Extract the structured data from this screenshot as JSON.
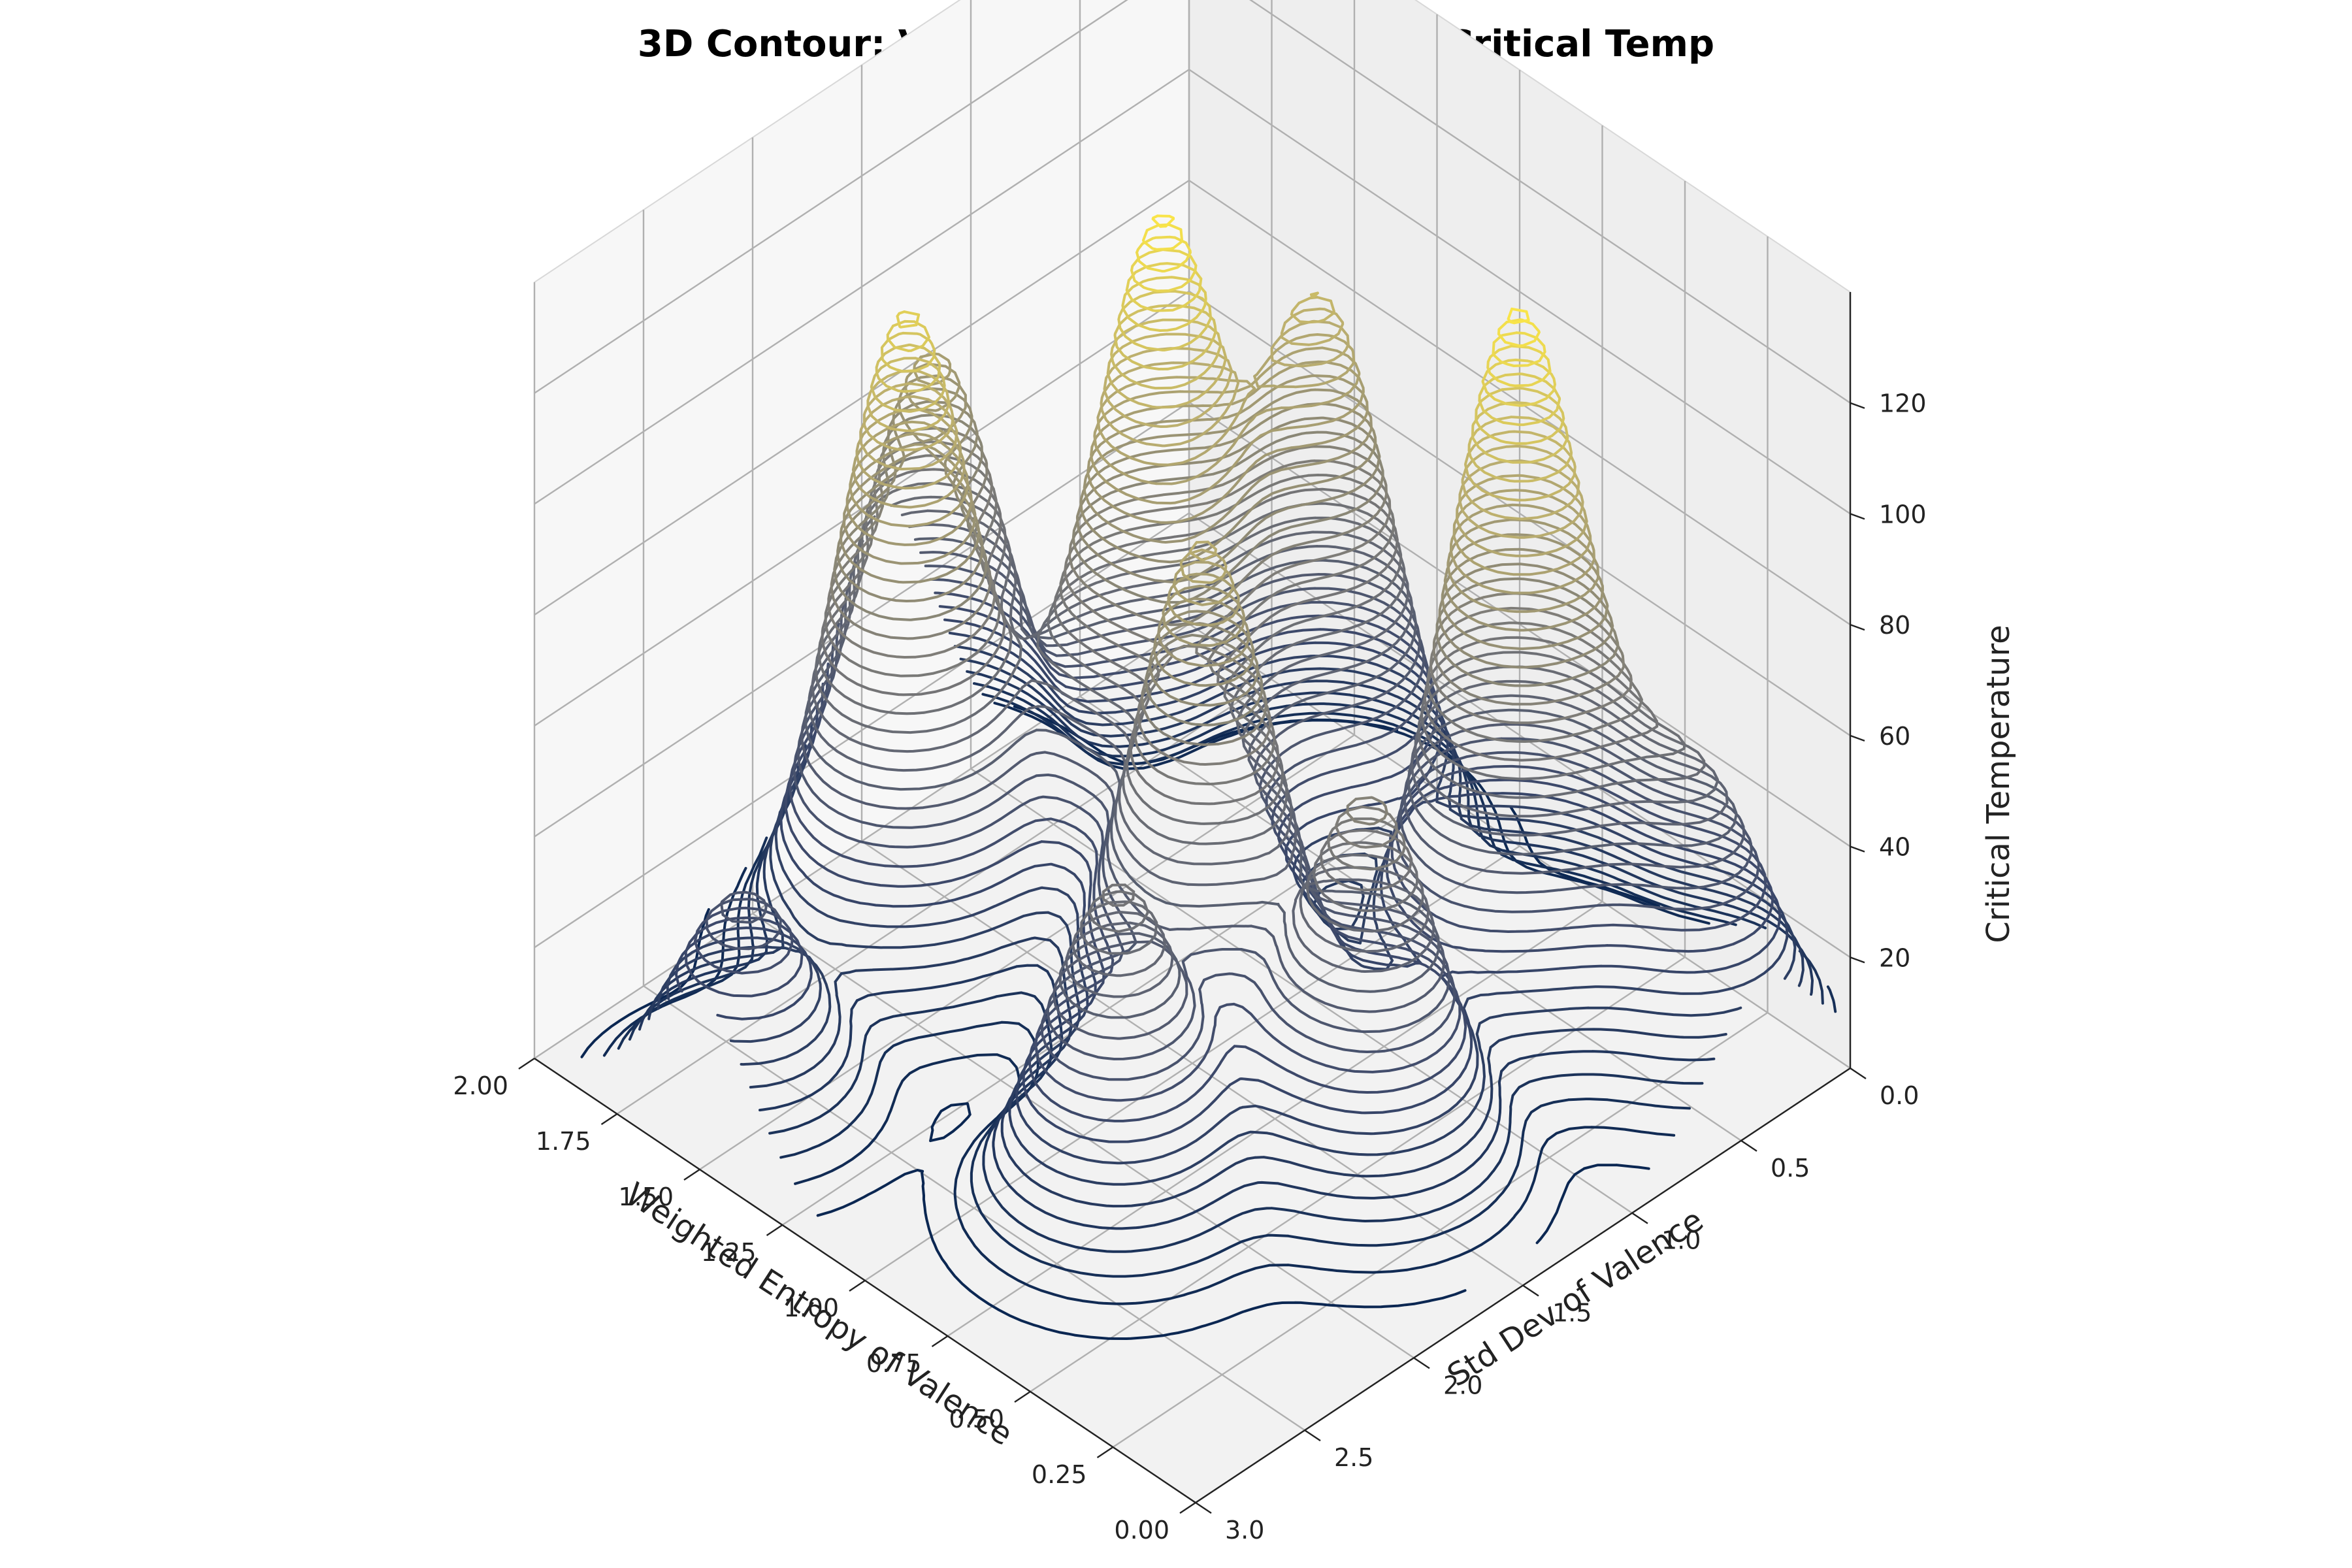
{
  "chart_data": {
    "type": "contour3d",
    "title": "3D Contour: Valence Entropy & Std vs. Critical Temp",
    "xlabel": "Weighted Entropy of Valence",
    "ylabel": "Std Dev of Valence",
    "zlabel": "Critical Temperature",
    "xlim": [
      0.0,
      2.0
    ],
    "ylim": [
      0.0,
      3.0
    ],
    "zlim": [
      0,
      140
    ],
    "x_ticks": [
      "0.00",
      "0.25",
      "0.50",
      "0.75",
      "1.00",
      "1.25",
      "1.50",
      "1.75",
      "2.00"
    ],
    "y_ticks": [
      "0.0",
      "0.5",
      "1.0",
      "1.5",
      "2.0",
      "2.5",
      "3.0"
    ],
    "z_ticks": [
      "20",
      "40",
      "60",
      "80",
      "100",
      "120"
    ],
    "colormap": [
      "#00204c",
      "#3e4a6b",
      "#7c7b78",
      "#bcaf6f",
      "#ffe945"
    ],
    "grid": true,
    "peaks": [
      {
        "x": 1.3,
        "y": 1.2,
        "z": 125
      },
      {
        "x": 0.55,
        "y": 0.7,
        "z": 128
      },
      {
        "x": 1.6,
        "y": 1.9,
        "z": 115
      },
      {
        "x": 0.9,
        "y": 1.6,
        "z": 95
      },
      {
        "x": 1.85,
        "y": 1.4,
        "z": 85
      },
      {
        "x": 1.2,
        "y": 0.6,
        "z": 100
      },
      {
        "x": 0.4,
        "y": 1.6,
        "z": 70
      },
      {
        "x": 0.7,
        "y": 2.3,
        "z": 60
      },
      {
        "x": 1.5,
        "y": 2.8,
        "z": 40
      },
      {
        "x": 0.2,
        "y": 0.4,
        "z": 50
      }
    ]
  }
}
